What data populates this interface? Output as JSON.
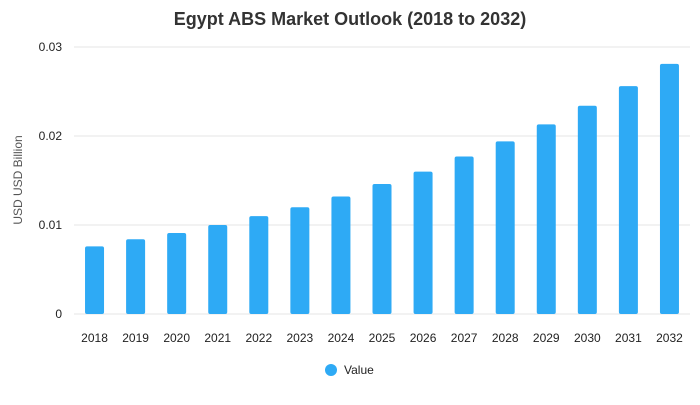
{
  "chart_data": {
    "type": "bar",
    "title": "Egypt ABS Market Outlook (2018 to 2032)",
    "xlabel": "",
    "ylabel": "USD USD Billion",
    "categories": [
      "2018",
      "2019",
      "2020",
      "2021",
      "2022",
      "2023",
      "2024",
      "2025",
      "2026",
      "2027",
      "2028",
      "2029",
      "2030",
      "2031",
      "2032"
    ],
    "series": [
      {
        "name": "Value",
        "color": "#2eaaf5",
        "values": [
          0.0076,
          0.0084,
          0.0091,
          0.01,
          0.011,
          0.012,
          0.0132,
          0.0146,
          0.016,
          0.0177,
          0.0194,
          0.0213,
          0.0234,
          0.0256,
          0.0281
        ]
      }
    ],
    "ylim": [
      0,
      0.03
    ],
    "yticks": [
      0,
      0.01,
      0.02,
      0.03
    ],
    "ytick_labels": [
      "0",
      "0.01",
      "0.02",
      "0.03"
    ],
    "grid": true,
    "legend_position": "bottom-center"
  }
}
